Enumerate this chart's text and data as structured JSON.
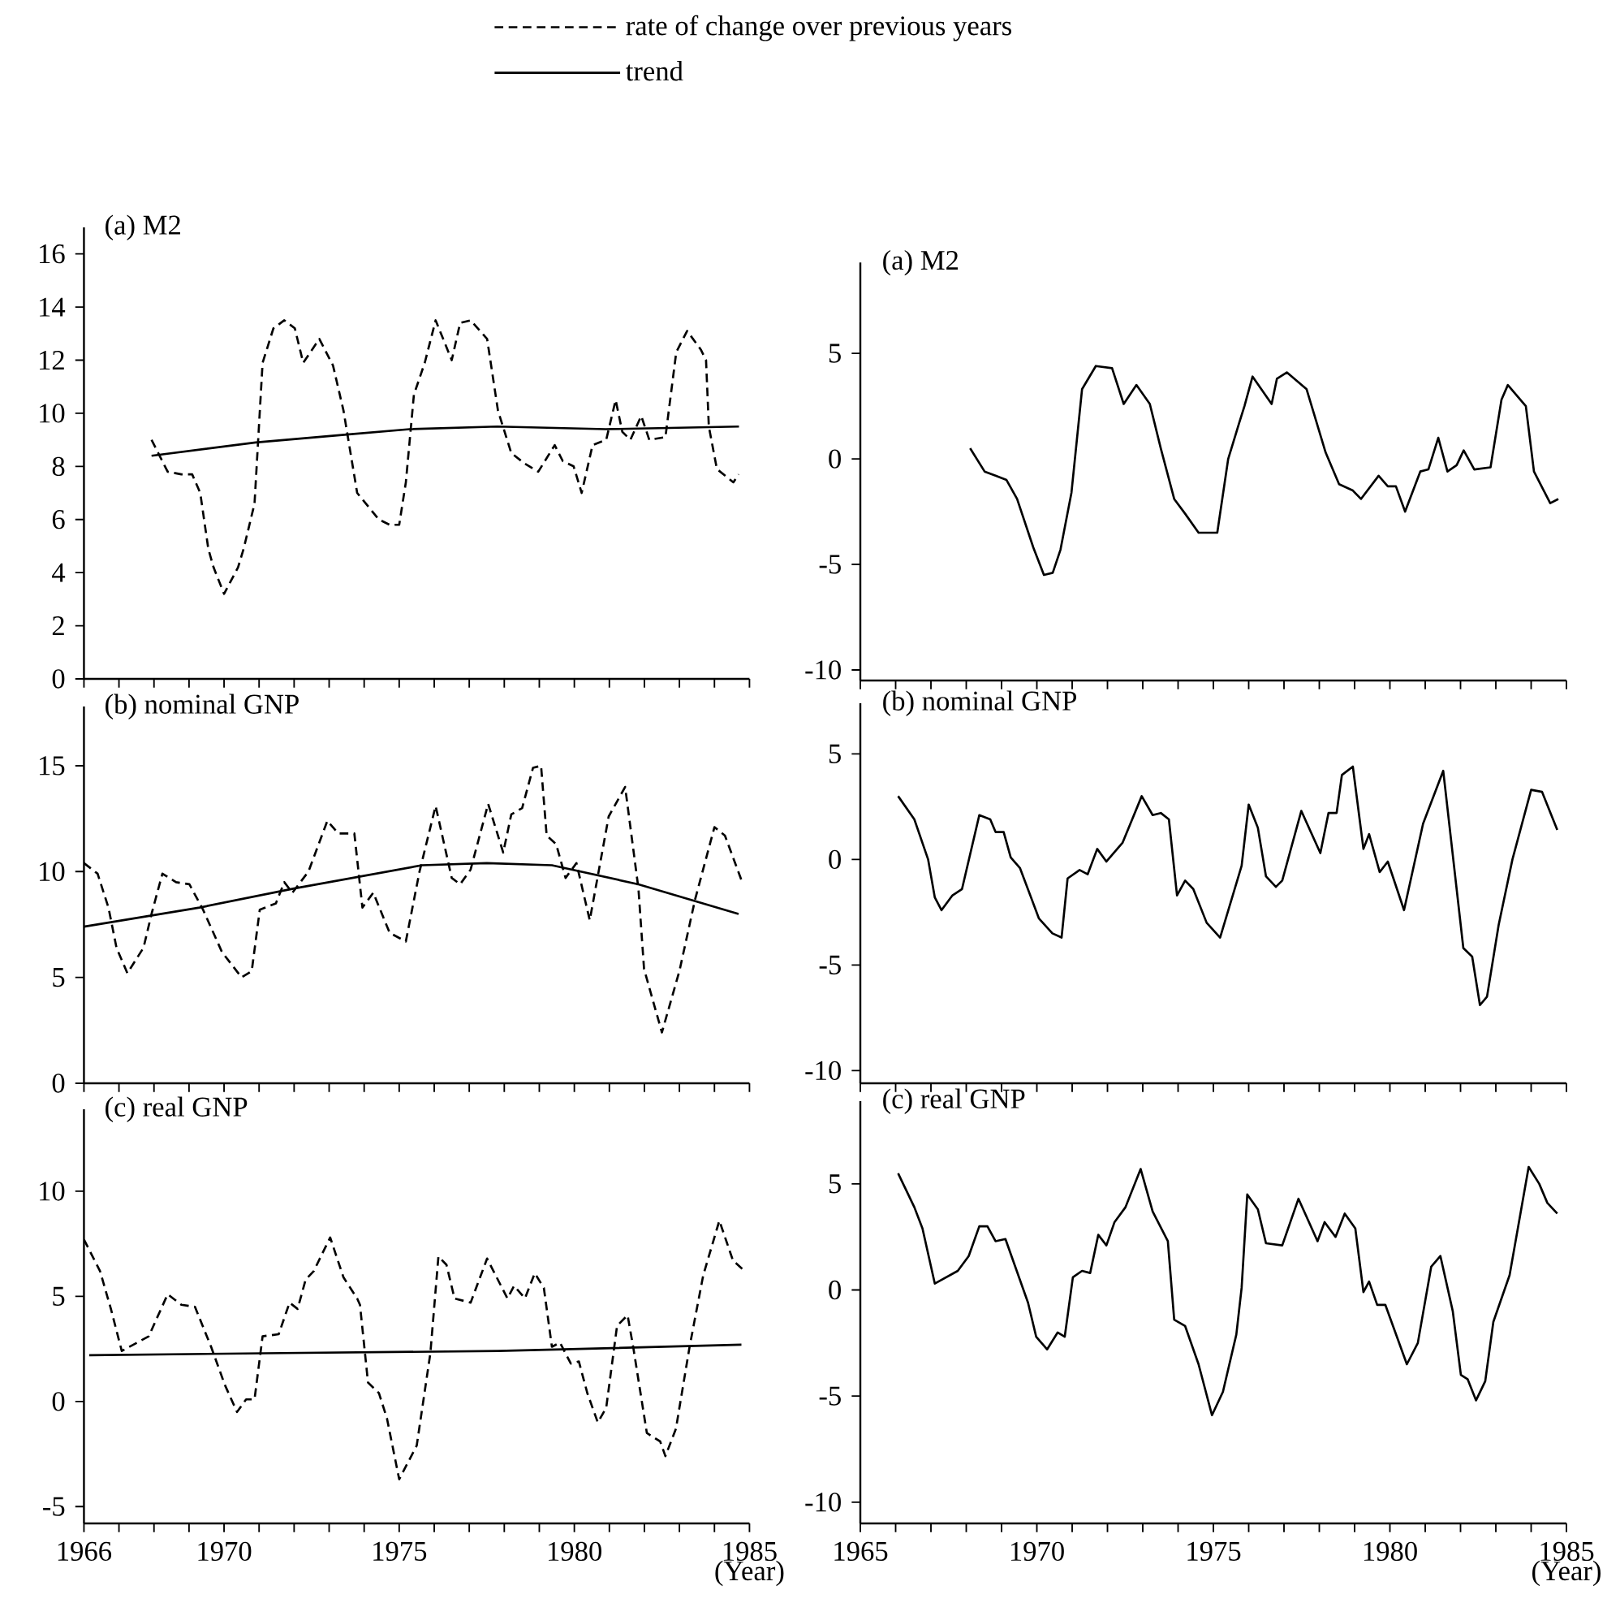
{
  "chart_data": [
    {
      "type": "line",
      "title": "(a) M2",
      "xlim": [
        1966,
        1985
      ],
      "ylim": [
        0,
        17
      ],
      "tick_labels": "y",
      "legend": "top",
      "xticks": [
        1966,
        {
          "value": 1967,
          "label": null
        },
        {
          "value": 1968,
          "label": null
        },
        {
          "value": 1969,
          "label": null
        },
        1970,
        {
          "value": 1971,
          "label": null
        },
        {
          "value": 1972,
          "label": null
        },
        {
          "value": 1973,
          "label": null
        },
        {
          "value": 1974,
          "label": null
        },
        1975,
        {
          "value": 1976,
          "label": null
        },
        {
          "value": 1977,
          "label": null
        },
        {
          "value": 1978,
          "label": null
        },
        {
          "value": 1979,
          "label": null
        },
        1980,
        {
          "value": 1981,
          "label": null
        },
        {
          "value": 1982,
          "label": null
        },
        {
          "value": 1983,
          "label": null
        },
        {
          "value": 1984,
          "label": null
        },
        1985
      ],
      "yticks": [
        0,
        2,
        4,
        6,
        8,
        10,
        12,
        14,
        16
      ],
      "series": [
        {
          "name": "rate of change over previous years",
          "color": "#000000",
          "line_style": "dashed",
          "x": [
            1967.93,
            1968.39,
            1968.78,
            1969.09,
            1969.32,
            1969.55,
            1969.7,
            1970.0,
            1970.4,
            1970.56,
            1970.87,
            1971.1,
            1971.41,
            1971.72,
            1972.02,
            1972.26,
            1972.72,
            1973.11,
            1973.41,
            1973.8,
            1974.42,
            1974.73,
            1975.0,
            1975.19,
            1975.42,
            1975.73,
            1976.04,
            1976.5,
            1976.74,
            1977.04,
            1977.51,
            1977.82,
            1978.2,
            1978.59,
            1978.97,
            1979.44,
            1979.67,
            1979.98,
            1980.21,
            1980.52,
            1980.91,
            1981.18,
            1981.37,
            1981.6,
            1981.91,
            1982.14,
            1982.6,
            1982.91,
            1983.22,
            1983.61,
            1983.76,
            1983.84,
            1984.07,
            1984.54,
            1984.69
          ],
          "values": [
            9.0,
            7.8,
            7.7,
            7.7,
            7.0,
            4.9,
            4.2,
            3.2,
            4.2,
            4.9,
            6.6,
            11.9,
            13.2,
            13.5,
            13.2,
            11.9,
            12.8,
            11.8,
            10.1,
            7.0,
            6.0,
            5.8,
            5.8,
            7.4,
            10.7,
            11.9,
            13.5,
            12.0,
            13.4,
            13.5,
            12.8,
            10.1,
            8.5,
            8.1,
            7.8,
            8.8,
            8.2,
            8.0,
            7.0,
            8.8,
            9.0,
            10.5,
            9.3,
            9.0,
            9.9,
            9.0,
            9.1,
            12.3,
            13.1,
            12.4,
            12.0,
            9.5,
            7.9,
            7.4,
            7.7
          ]
        },
        {
          "name": "trend",
          "color": "#000000",
          "line_style": "solid",
          "x": [
            1967.93,
            1970.9,
            1973.5,
            1975.3,
            1977.8,
            1980.9,
            1984.7
          ],
          "values": [
            8.4,
            8.9,
            9.2,
            9.4,
            9.5,
            9.4,
            9.5
          ]
        }
      ]
    },
    {
      "type": "line",
      "title": "(a) M2",
      "xlim": [
        1965,
        1985
      ],
      "ylim": [
        -10.5,
        9.3
      ],
      "tick_labels": "y",
      "xticks": [
        1965,
        {
          "value": 1966,
          "label": null
        },
        {
          "value": 1967,
          "label": null
        },
        {
          "value": 1968,
          "label": null
        },
        {
          "value": 1969,
          "label": null
        },
        1970,
        {
          "value": 1971,
          "label": null
        },
        {
          "value": 1972,
          "label": null
        },
        {
          "value": 1973,
          "label": null
        },
        {
          "value": 1974,
          "label": null
        },
        1975,
        {
          "value": 1976,
          "label": null
        },
        {
          "value": 1977,
          "label": null
        },
        {
          "value": 1978,
          "label": null
        },
        {
          "value": 1979,
          "label": null
        },
        1980,
        {
          "value": 1981,
          "label": null
        },
        {
          "value": 1982,
          "label": null
        },
        {
          "value": 1983,
          "label": null
        },
        {
          "value": 1984,
          "label": null
        },
        1985
      ],
      "yticks": [
        -10,
        -5,
        0,
        5
      ],
      "series": [
        {
          "color": "#000000",
          "line_style": "solid",
          "x": [
            1968.11,
            1968.52,
            1968.83,
            1969.14,
            1969.44,
            1969.9,
            1970.2,
            1970.45,
            1970.67,
            1970.98,
            1971.28,
            1971.67,
            1972.13,
            1972.46,
            1972.82,
            1973.2,
            1973.51,
            1973.89,
            1974.2,
            1974.58,
            1975.11,
            1975.42,
            1975.73,
            1975.88,
            1976.11,
            1976.65,
            1976.8,
            1977.08,
            1977.64,
            1978.18,
            1978.56,
            1978.95,
            1979.18,
            1979.68,
            1979.94,
            1980.17,
            1980.43,
            1980.86,
            1981.09,
            1981.37,
            1981.63,
            1981.89,
            1982.09,
            1982.39,
            1982.85,
            1983.16,
            1983.34,
            1983.85,
            1984.08,
            1984.54,
            1984.77
          ],
          "values": [
            0.5,
            -0.6,
            -0.8,
            -1.0,
            -1.9,
            -4.2,
            -5.5,
            -5.4,
            -4.3,
            -1.6,
            3.3,
            4.4,
            4.3,
            2.6,
            3.5,
            2.6,
            0.5,
            -1.9,
            -2.6,
            -3.5,
            -3.5,
            0.0,
            1.7,
            2.5,
            3.9,
            2.6,
            3.8,
            4.1,
            3.3,
            0.3,
            -1.2,
            -1.5,
            -1.9,
            -0.8,
            -1.3,
            -1.3,
            -2.5,
            -0.6,
            -0.5,
            1.0,
            -0.6,
            -0.3,
            0.4,
            -0.5,
            -0.4,
            2.8,
            3.5,
            2.5,
            -0.6,
            -2.1,
            -1.9
          ]
        }
      ]
    },
    {
      "type": "line",
      "title": "(b) nominal GNP",
      "xlim": [
        1966,
        1985
      ],
      "ylim": [
        0,
        17.8
      ],
      "tick_labels": "y",
      "xticks": [
        1966,
        {
          "value": 1967,
          "label": null
        },
        {
          "value": 1968,
          "label": null
        },
        {
          "value": 1969,
          "label": null
        },
        1970,
        {
          "value": 1971,
          "label": null
        },
        {
          "value": 1972,
          "label": null
        },
        {
          "value": 1973,
          "label": null
        },
        {
          "value": 1974,
          "label": null
        },
        1975,
        {
          "value": 1976,
          "label": null
        },
        {
          "value": 1977,
          "label": null
        },
        {
          "value": 1978,
          "label": null
        },
        {
          "value": 1979,
          "label": null
        },
        1980,
        {
          "value": 1981,
          "label": null
        },
        {
          "value": 1982,
          "label": null
        },
        {
          "value": 1983,
          "label": null
        },
        {
          "value": 1984,
          "label": null
        },
        1985
      ],
      "yticks": [
        0,
        5,
        10,
        15
      ],
      "series": [
        {
          "color": "#000000",
          "line_style": "dashed",
          "x": [
            1966.0,
            1966.39,
            1966.7,
            1966.93,
            1967.24,
            1967.7,
            1967.93,
            1968.24,
            1968.63,
            1969.01,
            1969.4,
            1969.94,
            1970.5,
            1970.79,
            1971.02,
            1971.48,
            1971.72,
            1971.95,
            1972.41,
            1972.95,
            1973.26,
            1973.72,
            1973.95,
            1974.26,
            1974.73,
            1975.19,
            1975.58,
            1976.04,
            1976.5,
            1976.74,
            1977.04,
            1977.54,
            1977.97,
            1978.2,
            1978.51,
            1978.82,
            1979.05,
            1979.21,
            1979.48,
            1979.75,
            1980.06,
            1980.44,
            1980.98,
            1981.45,
            1981.83,
            1981.99,
            1982.5,
            1983.0,
            1983.45,
            1984.0,
            1984.3,
            1984.77
          ],
          "values": [
            10.4,
            9.9,
            8.3,
            6.4,
            5.2,
            6.4,
            8.0,
            9.9,
            9.5,
            9.4,
            8.2,
            6.2,
            5.0,
            5.3,
            8.2,
            8.5,
            9.5,
            9.0,
            10.0,
            12.4,
            11.8,
            11.8,
            8.3,
            9.0,
            7.1,
            6.7,
            10.0,
            13.1,
            9.7,
            9.4,
            10.1,
            13.2,
            10.9,
            12.7,
            13.0,
            14.9,
            15.0,
            11.7,
            11.3,
            9.7,
            10.4,
            7.7,
            12.6,
            14.0,
            9.2,
            5.4,
            2.4,
            5.3,
            8.7,
            12.1,
            11.7,
            9.6
          ]
        },
        {
          "color": "#000000",
          "line_style": "solid",
          "x": [
            1966.0,
            1969.3,
            1972.0,
            1975.65,
            1977.5,
            1979.36,
            1981.83,
            1984.69
          ],
          "values": [
            7.4,
            8.3,
            9.2,
            10.3,
            10.4,
            10.3,
            9.4,
            8.0
          ]
        }
      ]
    },
    {
      "type": "line",
      "title": "(b) nominal GNP",
      "xlim": [
        1965,
        1985
      ],
      "ylim": [
        -10.6,
        7.4
      ],
      "tick_labels": "y",
      "xticks": [
        1965,
        {
          "value": 1966,
          "label": null
        },
        {
          "value": 1967,
          "label": null
        },
        {
          "value": 1968,
          "label": null
        },
        {
          "value": 1969,
          "label": null
        },
        1970,
        {
          "value": 1971,
          "label": null
        },
        {
          "value": 1972,
          "label": null
        },
        {
          "value": 1973,
          "label": null
        },
        {
          "value": 1974,
          "label": null
        },
        1975,
        {
          "value": 1976,
          "label": null
        },
        {
          "value": 1977,
          "label": null
        },
        {
          "value": 1978,
          "label": null
        },
        {
          "value": 1979,
          "label": null
        },
        1980,
        {
          "value": 1981,
          "label": null
        },
        {
          "value": 1982,
          "label": null
        },
        {
          "value": 1983,
          "label": null
        },
        {
          "value": 1984,
          "label": null
        },
        1985
      ],
      "yticks": [
        -10,
        -5,
        0,
        5
      ],
      "series": [
        {
          "color": "#000000",
          "line_style": "solid",
          "x": [
            1966.07,
            1966.53,
            1966.92,
            1967.11,
            1967.3,
            1967.61,
            1967.88,
            1968.37,
            1968.68,
            1968.83,
            1969.06,
            1969.26,
            1969.52,
            1970.06,
            1970.44,
            1970.7,
            1970.87,
            1971.21,
            1971.44,
            1971.71,
            1971.97,
            1972.43,
            1972.97,
            1973.28,
            1973.51,
            1973.74,
            1973.97,
            1974.2,
            1974.43,
            1974.81,
            1975.19,
            1975.8,
            1976.0,
            1976.26,
            1976.49,
            1976.77,
            1976.95,
            1977.49,
            1978.03,
            1978.26,
            1978.49,
            1978.64,
            1978.95,
            1979.25,
            1979.41,
            1979.71,
            1979.94,
            1980.4,
            1980.94,
            1981.51,
            1982.08,
            1982.33,
            1982.55,
            1982.75,
            1983.08,
            1983.47,
            1984.0,
            1984.31,
            1984.74
          ],
          "values": [
            3.0,
            1.9,
            0.0,
            -1.8,
            -2.4,
            -1.7,
            -1.4,
            2.1,
            1.9,
            1.3,
            1.3,
            0.1,
            -0.4,
            -2.8,
            -3.5,
            -3.7,
            -0.9,
            -0.5,
            -0.7,
            0.5,
            -0.1,
            0.8,
            3.0,
            2.1,
            2.2,
            1.9,
            -1.7,
            -1.0,
            -1.4,
            -3.0,
            -3.7,
            -0.3,
            2.6,
            1.5,
            -0.8,
            -1.3,
            -1.0,
            2.3,
            0.3,
            2.2,
            2.2,
            4.0,
            4.4,
            0.5,
            1.2,
            -0.6,
            -0.1,
            -2.4,
            1.7,
            4.2,
            -4.2,
            -4.6,
            -6.9,
            -6.5,
            -3.1,
            0.0,
            3.3,
            3.2,
            1.4
          ]
        }
      ]
    },
    {
      "type": "line",
      "title": "(c) real GNP",
      "xlabel": "(Year)",
      "xlim": [
        1966,
        1985
      ],
      "ylim": [
        -5.8,
        13.9
      ],
      "xticks": [
        1966,
        {
          "value": 1967,
          "label": null
        },
        {
          "value": 1968,
          "label": null
        },
        {
          "value": 1969,
          "label": null
        },
        1970,
        {
          "value": 1971,
          "label": null
        },
        {
          "value": 1972,
          "label": null
        },
        {
          "value": 1973,
          "label": null
        },
        {
          "value": 1974,
          "label": null
        },
        1975,
        {
          "value": 1976,
          "label": null
        },
        {
          "value": 1977,
          "label": null
        },
        {
          "value": 1978,
          "label": null
        },
        {
          "value": 1979,
          "label": null
        },
        1980,
        {
          "value": 1981,
          "label": null
        },
        {
          "value": 1982,
          "label": null
        },
        {
          "value": 1983,
          "label": null
        },
        {
          "value": 1984,
          "label": null
        },
        1985
      ],
      "yticks": [
        -5,
        0,
        5,
        10
      ],
      "series": [
        {
          "color": "#000000",
          "line_style": "dashed",
          "x": [
            1966.0,
            1966.46,
            1966.77,
            1967.08,
            1967.85,
            1968.39,
            1968.78,
            1969.17,
            1969.63,
            1970.02,
            1970.37,
            1970.63,
            1970.87,
            1971.1,
            1971.56,
            1971.87,
            1972.1,
            1972.33,
            1972.56,
            1973.03,
            1973.41,
            1973.8,
            1973.88,
            1974.11,
            1974.42,
            1974.65,
            1975.0,
            1975.5,
            1975.89,
            1976.12,
            1976.35,
            1976.58,
            1977.04,
            1977.51,
            1978.09,
            1978.28,
            1978.59,
            1978.87,
            1979.13,
            1979.36,
            1979.59,
            1979.9,
            1980.13,
            1980.37,
            1980.67,
            1980.91,
            1981.22,
            1981.52,
            1981.68,
            1982.07,
            1982.45,
            1982.6,
            1982.9,
            1983.29,
            1983.68,
            1984.14,
            1984.53,
            1984.8
          ],
          "values": [
            7.7,
            6.2,
            4.4,
            2.4,
            3.1,
            5.1,
            4.6,
            4.5,
            2.6,
            0.8,
            -0.5,
            0.1,
            0.1,
            3.1,
            3.2,
            4.7,
            4.4,
            5.8,
            6.2,
            7.8,
            5.9,
            4.9,
            4.6,
            0.9,
            0.4,
            -0.8,
            -3.7,
            -2.1,
            2.3,
            6.9,
            6.5,
            4.9,
            4.7,
            6.8,
            4.9,
            5.5,
            4.9,
            6.1,
            5.4,
            2.6,
            2.8,
            1.8,
            1.9,
            0.4,
            -1.0,
            -0.3,
            3.6,
            4.1,
            2.6,
            -1.5,
            -1.9,
            -2.6,
            -1.3,
            2.6,
            6.0,
            8.6,
            6.7,
            6.3
          ]
        },
        {
          "color": "#000000",
          "line_style": "solid",
          "x": [
            1966.15,
            1971.64,
            1977.82,
            1984.77
          ],
          "values": [
            2.2,
            2.3,
            2.4,
            2.7
          ]
        }
      ]
    },
    {
      "type": "line",
      "title": "(c) real GNP",
      "xlabel": "(Year)",
      "xlim": [
        1965,
        1985
      ],
      "ylim": [
        -11.0,
        8.9
      ],
      "xticks": [
        1965,
        {
          "value": 1966,
          "label": null
        },
        {
          "value": 1967,
          "label": null
        },
        {
          "value": 1968,
          "label": null
        },
        {
          "value": 1969,
          "label": null
        },
        1970,
        {
          "value": 1971,
          "label": null
        },
        {
          "value": 1972,
          "label": null
        },
        {
          "value": 1973,
          "label": null
        },
        {
          "value": 1974,
          "label": null
        },
        1975,
        {
          "value": 1976,
          "label": null
        },
        {
          "value": 1977,
          "label": null
        },
        {
          "value": 1978,
          "label": null
        },
        {
          "value": 1979,
          "label": null
        },
        1980,
        {
          "value": 1981,
          "label": null
        },
        {
          "value": 1982,
          "label": null
        },
        {
          "value": 1983,
          "label": null
        },
        {
          "value": 1984,
          "label": null
        },
        1985
      ],
      "yticks": [
        -10,
        -5,
        0,
        5
      ],
      "series": [
        {
          "color": "#000000",
          "line_style": "solid",
          "x": [
            1966.07,
            1966.53,
            1966.76,
            1967.11,
            1967.76,
            1968.07,
            1968.37,
            1968.6,
            1968.83,
            1969.11,
            1969.75,
            1969.98,
            1970.29,
            1970.59,
            1970.79,
            1971.02,
            1971.28,
            1971.51,
            1971.74,
            1971.97,
            1972.2,
            1972.51,
            1972.94,
            1973.28,
            1973.71,
            1973.89,
            1974.2,
            1974.58,
            1974.96,
            1975.27,
            1975.65,
            1975.8,
            1975.96,
            1976.26,
            1976.49,
            1976.95,
            1977.41,
            1977.95,
            1978.15,
            1978.46,
            1978.72,
            1979.02,
            1979.25,
            1979.41,
            1979.64,
            1979.87,
            1980.48,
            1980.79,
            1981.17,
            1981.43,
            1981.78,
            1982.01,
            1982.2,
            1982.44,
            1982.7,
            1982.93,
            1983.39,
            1983.93,
            1984.23,
            1984.46,
            1984.74
          ],
          "values": [
            5.5,
            3.9,
            2.9,
            0.3,
            0.9,
            1.6,
            3.0,
            3.0,
            2.3,
            2.4,
            -0.6,
            -2.2,
            -2.8,
            -2.0,
            -2.2,
            0.6,
            0.9,
            0.8,
            2.6,
            2.1,
            3.2,
            3.9,
            5.7,
            3.7,
            2.3,
            -1.4,
            -1.7,
            -3.5,
            -5.9,
            -4.8,
            -2.1,
            0.1,
            4.5,
            3.8,
            2.2,
            2.1,
            4.3,
            2.3,
            3.2,
            2.5,
            3.6,
            2.9,
            -0.1,
            0.4,
            -0.7,
            -0.7,
            -3.5,
            -2.5,
            1.1,
            1.6,
            -1.0,
            -4.0,
            -4.2,
            -5.2,
            -4.3,
            -1.5,
            0.7,
            5.8,
            5.0,
            4.1,
            3.6
          ]
        }
      ]
    }
  ]
}
